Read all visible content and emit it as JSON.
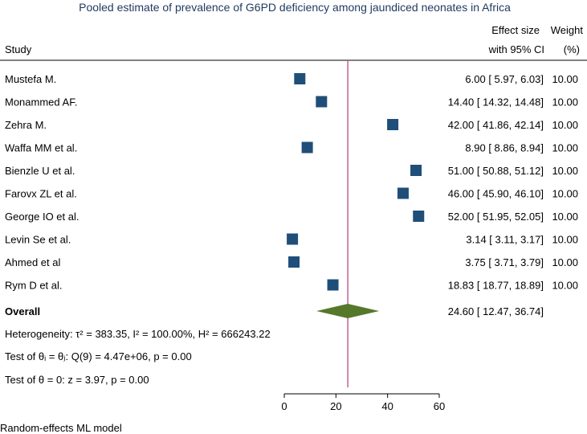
{
  "chart_data": {
    "type": "forest",
    "title": "Pooled estimate of prevalence of G6PD deficiency among jaundiced neonates in Africa",
    "headers": {
      "study": "Study",
      "effect_line1": "Effect size",
      "effect_line2": "with 95% CI",
      "weight_line1": "Weight",
      "weight_line2": "(%)"
    },
    "studies": [
      {
        "name": "Mustefa M.",
        "es": 6.0,
        "lo": 5.97,
        "hi": 6.03,
        "weight": 10.0,
        "label": "6.00 [  5.97,   6.03]",
        "weight_label": "10.00"
      },
      {
        "name": "Monammed AF.",
        "es": 14.4,
        "lo": 14.32,
        "hi": 14.48,
        "weight": 10.0,
        "label": "14.40 [ 14.32,  14.48]",
        "weight_label": "10.00"
      },
      {
        "name": "Zehra M.",
        "es": 42.0,
        "lo": 41.86,
        "hi": 42.14,
        "weight": 10.0,
        "label": "42.00 [ 41.86,  42.14]",
        "weight_label": "10.00"
      },
      {
        "name": "Waffa MM et al.",
        "es": 8.9,
        "lo": 8.86,
        "hi": 8.94,
        "weight": 10.0,
        "label": "8.90 [  8.86,   8.94]",
        "weight_label": "10.00"
      },
      {
        "name": "Bienzle U et al.",
        "es": 51.0,
        "lo": 50.88,
        "hi": 51.12,
        "weight": 10.0,
        "label": "51.00 [ 50.88,  51.12]",
        "weight_label": "10.00"
      },
      {
        "name": "Farovx ZL et al.",
        "es": 46.0,
        "lo": 45.9,
        "hi": 46.1,
        "weight": 10.0,
        "label": "46.00 [ 45.90,  46.10]",
        "weight_label": "10.00"
      },
      {
        "name": "George IO et al.",
        "es": 52.0,
        "lo": 51.95,
        "hi": 52.05,
        "weight": 10.0,
        "label": "52.00 [ 51.95,  52.05]",
        "weight_label": "10.00"
      },
      {
        "name": "Levin Se et al.",
        "es": 3.14,
        "lo": 3.11,
        "hi": 3.17,
        "weight": 10.0,
        "label": "3.14 [  3.11,   3.17]",
        "weight_label": "10.00"
      },
      {
        "name": "Ahmed et al",
        "es": 3.75,
        "lo": 3.71,
        "hi": 3.79,
        "weight": 10.0,
        "label": "3.75 [  3.71,   3.79]",
        "weight_label": "10.00"
      },
      {
        "name": "Rym D et al.",
        "es": 18.83,
        "lo": 18.77,
        "hi": 18.89,
        "weight": 10.0,
        "label": "18.83 [ 18.77,  18.89]",
        "weight_label": "10.00"
      }
    ],
    "overall": {
      "name": "Overall",
      "es": 24.6,
      "lo": 12.47,
      "hi": 36.74,
      "label": "24.60 [ 12.47,  36.74]"
    },
    "stats": {
      "heterogeneity": "Heterogeneity: τ² = 383.35, I² = 100.00%, H² = 666243.22",
      "test_homogeneity": "Test of θᵢ = θⱼ: Q(9) = 4.47e+06, p = 0.00",
      "test_effect": "Test of θ = 0: z = 3.97, p = 0.00"
    },
    "xlim": [
      0,
      60
    ],
    "xticks": [
      0,
      20,
      40,
      60
    ],
    "footnote": "Random-effects ML model",
    "colors": {
      "box": "#1f4e79",
      "diamond": "#55782b",
      "refline": "#c0568c",
      "title": "#1e3a5f"
    }
  }
}
